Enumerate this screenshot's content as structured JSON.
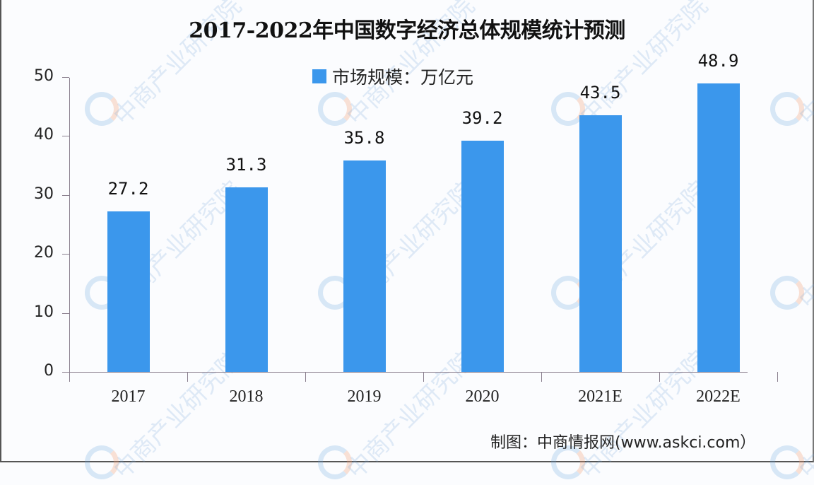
{
  "title": "2017-2022年中国数字经济总体规模统计预测",
  "legend": {
    "label": "市场规模：万亿元",
    "color": "#3b97ec"
  },
  "source": "制图：中商情报网(www.askci.com）",
  "watermark": "中商产业研究院",
  "chart_data": {
    "type": "bar",
    "title": "2017-2022年中国数字经济总体规模统计预测",
    "xlabel": "",
    "ylabel": "",
    "categories": [
      "2017",
      "2018",
      "2019",
      "2020",
      "2021E",
      "2022E"
    ],
    "series": [
      {
        "name": "市场规模：万亿元",
        "values": [
          27.2,
          31.3,
          35.8,
          39.2,
          43.5,
          48.9
        ],
        "color": "#3b97ec"
      }
    ],
    "value_labels": [
      "27.2",
      "31.3",
      "35.8",
      "39.2",
      "43.5",
      "48.9"
    ],
    "ylim": [
      0,
      50
    ],
    "yticks": [
      "0",
      "10",
      "20",
      "30",
      "40",
      "50"
    ],
    "grid": false,
    "legend_position": "top-center"
  }
}
